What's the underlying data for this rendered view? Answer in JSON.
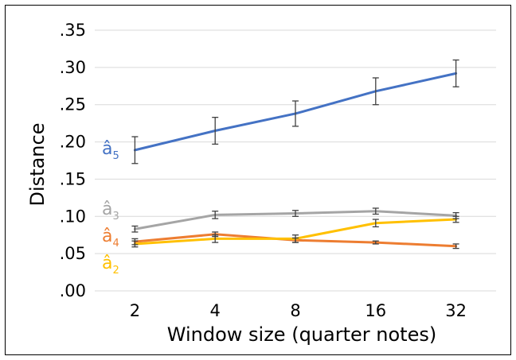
{
  "chart_data": {
    "type": "line",
    "title": "",
    "xlabel": "Window size (quarter notes)",
    "ylabel": "Distance",
    "categories": [
      "2",
      "4",
      "8",
      "16",
      "32"
    ],
    "ylim": [
      0,
      0.35
    ],
    "yticks": [
      0,
      0.05,
      0.1,
      0.15,
      0.2,
      0.25,
      0.3,
      0.35
    ],
    "ytick_labels": [
      ".00",
      ".05",
      ".10",
      ".15",
      ".20",
      ".25",
      ".30",
      ".35"
    ],
    "grid": "horizontal",
    "legend": "inline labels at left",
    "series": [
      {
        "name": "â5",
        "label_main": "â",
        "label_sub": "5",
        "color": "#4472C4",
        "values": [
          0.189,
          0.215,
          0.238,
          0.268,
          0.292
        ],
        "err": [
          0.018,
          0.018,
          0.017,
          0.018,
          0.018
        ]
      },
      {
        "name": "â3",
        "label_main": "â",
        "label_sub": "3",
        "color": "#A5A5A5",
        "values": [
          0.083,
          0.102,
          0.104,
          0.107,
          0.101
        ],
        "err": [
          0.004,
          0.005,
          0.004,
          0.004,
          0.004
        ]
      },
      {
        "name": "â4",
        "label_main": "â",
        "label_sub": "4",
        "color": "#ED7D31",
        "values": [
          0.066,
          0.076,
          0.068,
          0.065,
          0.06
        ],
        "err": [
          0.004,
          0.003,
          0.003,
          0.002,
          0.003
        ]
      },
      {
        "name": "â2",
        "label_main": "â",
        "label_sub": "2",
        "color": "#FFC000",
        "values": [
          0.063,
          0.07,
          0.07,
          0.091,
          0.096
        ],
        "err": [
          0.004,
          0.005,
          0.005,
          0.005,
          0.004
        ]
      }
    ]
  }
}
